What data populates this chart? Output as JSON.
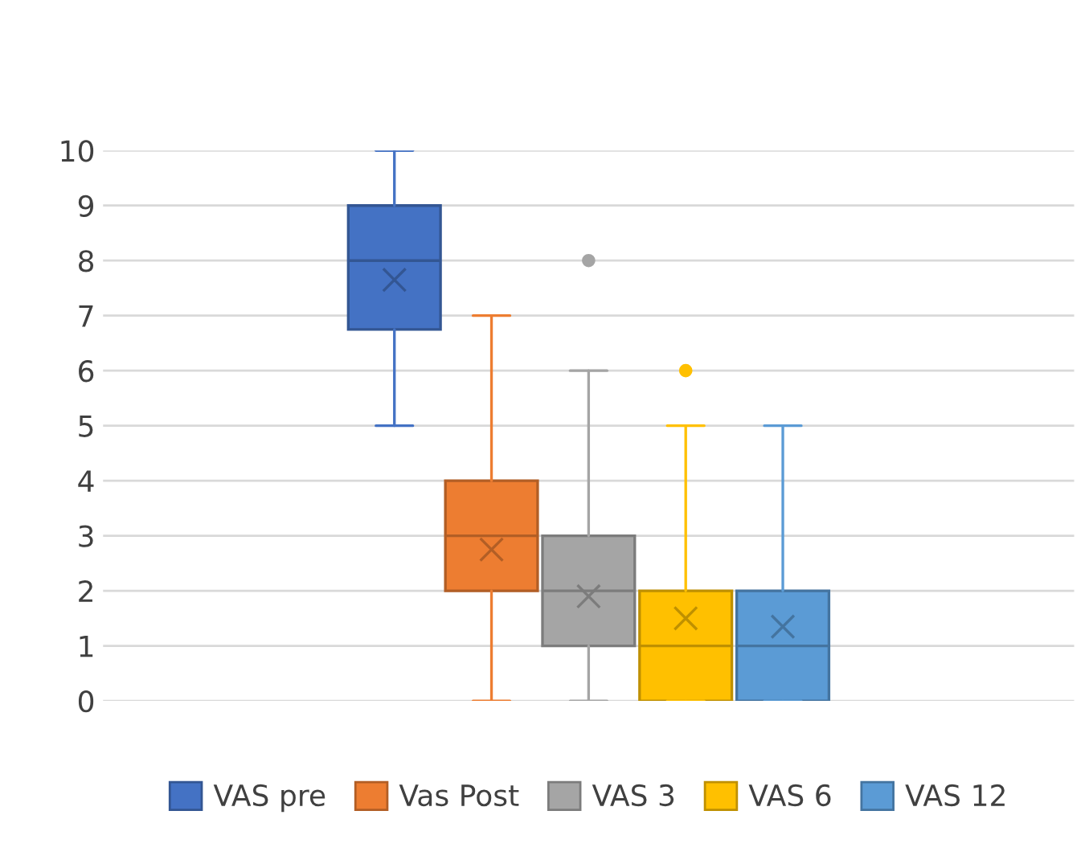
{
  "chart_data": {
    "type": "box",
    "categories": [
      null
    ],
    "series": [
      {
        "name": "VAS pre",
        "color": "#4472c4",
        "boxes": [
          {
            "low": 5,
            "q1": 6.75,
            "median": 8,
            "q3": 9,
            "high": 10,
            "mean": 7.65
          }
        ]
      },
      {
        "name": "Vas Post",
        "color": "#ed7d31",
        "boxes": [
          {
            "low": 0,
            "q1": 2,
            "median": 3,
            "q3": 4,
            "high": 7,
            "mean": 2.75
          }
        ]
      },
      {
        "name": "VAS 3",
        "color": "#a5a5a5",
        "boxes": [
          {
            "low": 0,
            "q1": 1,
            "median": 2,
            "q3": 3,
            "high": 6,
            "mean": 1.9,
            "outliers": [
              8
            ]
          }
        ]
      },
      {
        "name": "VAS 6",
        "color": "#ffc000",
        "boxes": [
          {
            "low": 0,
            "q1": 0,
            "median": 1,
            "q3": 2,
            "high": 5,
            "mean": 1.5,
            "outliers": [
              6
            ]
          }
        ]
      },
      {
        "name": "VAS 12",
        "color": "#5b9bd5",
        "boxes": [
          {
            "low": 0,
            "q1": 0,
            "median": 1,
            "q3": 2,
            "high": 5,
            "mean": 1.35
          }
        ]
      }
    ],
    "ylim": [
      0,
      10
    ],
    "yticks": [
      0,
      1,
      2,
      3,
      4,
      5,
      6,
      7,
      8,
      9,
      10
    ],
    "grid": "y",
    "legend": "bottom"
  }
}
